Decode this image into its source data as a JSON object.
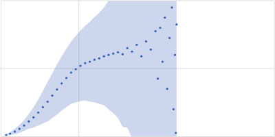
{
  "chart_data": {
    "type": "scatter",
    "x": [
      0.07,
      0.12,
      0.18,
      0.24,
      0.3,
      0.36,
      0.42,
      0.48,
      0.54,
      0.6,
      0.66,
      0.72,
      0.78,
      0.84,
      0.9,
      0.96,
      1.02,
      1.08,
      1.14,
      1.2,
      1.26,
      1.32,
      1.38,
      1.44,
      1.5,
      1.56,
      1.62,
      1.68,
      1.74,
      1.8,
      1.86,
      1.92,
      1.98,
      2.01,
      2.04,
      2.07,
      2.1,
      2.13,
      2.16,
      2.19,
      2.21,
      2.23,
      2.24,
      2.25
    ],
    "series": [
      {
        "color": "#3461b8",
        "values": [
          0.02,
          0.04,
          0.07,
          0.11,
          0.16,
          0.22,
          0.28,
          0.35,
          0.43,
          0.51,
          0.6,
          0.69,
          0.78,
          0.86,
          0.94,
          0.99,
          1.04,
          1.08,
          1.1,
          1.13,
          1.15,
          1.18,
          1.2,
          1.22,
          1.24,
          1.21,
          1.3,
          1.25,
          1.35,
          1.18,
          1.4,
          1.28,
          1.55,
          0.85,
          1.6,
          1.1,
          1.75,
          0.7,
          1.45,
          1.9,
          0.4,
          1.2,
          0.05,
          1.65
        ],
        "errors": [
          0.01,
          0.02,
          0.04,
          0.06,
          0.08,
          0.11,
          0.15,
          0.19,
          0.24,
          0.29,
          0.33,
          0.37,
          0.4,
          0.43,
          0.46,
          0.49,
          0.52,
          0.55,
          0.59,
          0.63,
          0.67,
          0.72,
          0.8,
          0.88,
          0.97,
          1.07,
          1.17,
          1.28,
          1.4,
          1.5,
          1.62,
          1.75,
          1.9,
          1.98,
          2.05,
          2.12,
          2.2,
          2.28,
          2.35,
          2.42,
          2.48,
          2.52,
          2.56,
          2.6
        ]
      }
    ],
    "xlim": [
      0,
      3.5
    ],
    "ylim": [
      0,
      2
    ],
    "xticks": [
      1
    ],
    "yticks": [
      1
    ],
    "grid": true,
    "tick_labels": false,
    "marker": "circle"
  }
}
